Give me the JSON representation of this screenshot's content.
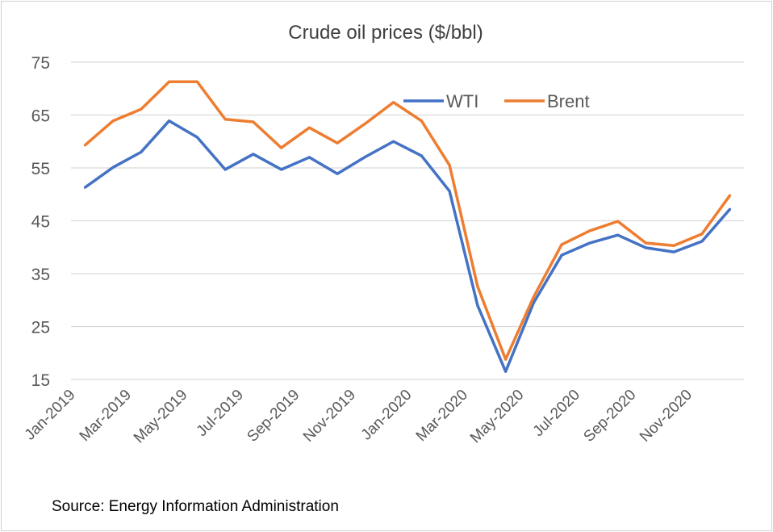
{
  "chart_data": {
    "type": "line",
    "title": "Crude oil prices ($/bbl)",
    "xlabel": "",
    "ylabel": "",
    "ylim": [
      15,
      75
    ],
    "yticks": [
      "75",
      "65",
      "55",
      "45",
      "35",
      "25",
      "15"
    ],
    "grid": true,
    "legend": "top-center",
    "x": [
      "Jan-2019",
      "Feb-2019",
      "Mar-2019",
      "Apr-2019",
      "May-2019",
      "Jun-2019",
      "Jul-2019",
      "Aug-2019",
      "Sep-2019",
      "Oct-2019",
      "Nov-2019",
      "Dec-2019",
      "Jan-2020",
      "Feb-2020",
      "Mar-2020",
      "Apr-2020",
      "May-2020",
      "Jun-2020",
      "Jul-2020",
      "Aug-2020",
      "Sep-2020",
      "Oct-2020",
      "Nov-2020",
      "Dec-2020"
    ],
    "xtick_labels": [
      "Jan-2019",
      "Mar-2019",
      "May-2019",
      "Jul-2019",
      "Sep-2019",
      "Nov-2019",
      "Jan-2020",
      "Mar-2020",
      "May-2020",
      "Jul-2020",
      "Sep-2020",
      "Nov-2020"
    ],
    "series": [
      {
        "name": "WTI",
        "color": "#4472c4",
        "values": [
          51.3,
          55.1,
          58.0,
          63.9,
          60.8,
          54.7,
          57.6,
          54.7,
          57.0,
          53.9,
          57.1,
          60.0,
          57.3,
          50.6,
          29.0,
          16.5,
          29.5,
          38.5,
          40.8,
          42.3,
          39.9,
          39.1,
          41.1,
          47.2
        ]
      },
      {
        "name": "Brent",
        "color": "#ed7d31",
        "values": [
          59.3,
          63.9,
          66.1,
          71.3,
          71.3,
          64.2,
          63.7,
          58.8,
          62.6,
          59.7,
          63.4,
          67.4,
          63.9,
          55.5,
          32.6,
          18.8,
          30.6,
          40.5,
          43.1,
          44.9,
          40.8,
          40.3,
          42.5,
          49.8
        ]
      }
    ]
  },
  "source": "Source:  Energy Information Administration"
}
